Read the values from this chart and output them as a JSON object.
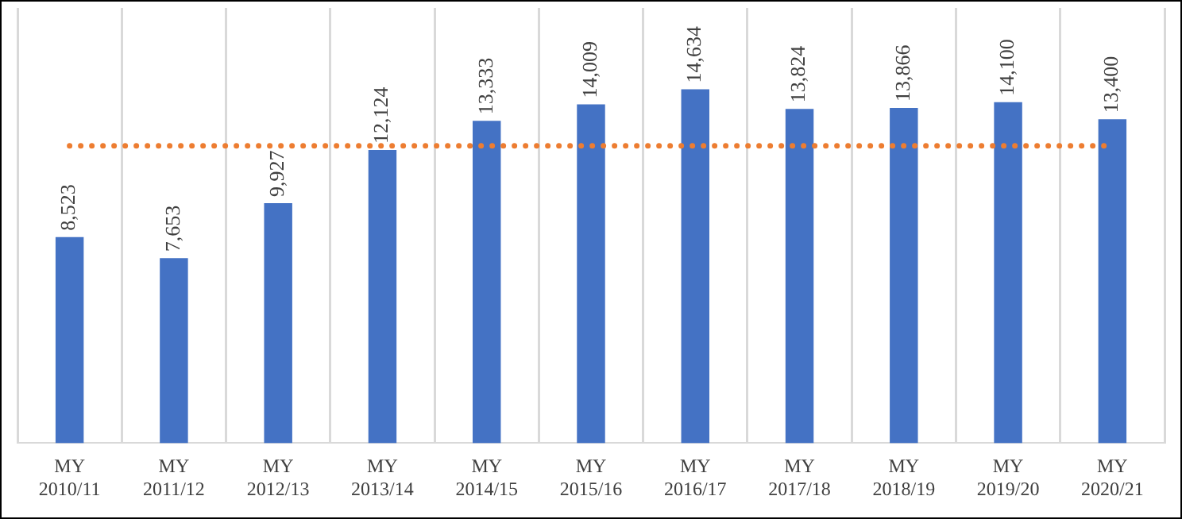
{
  "chart_data": {
    "type": "bar",
    "categories": [
      "MY 2010/11",
      "MY 2011/12",
      "MY 2012/13",
      "MY 2013/14",
      "MY 2014/15",
      "MY 2015/16",
      "MY 2016/17",
      "MY 2017/18",
      "MY 2018/19",
      "MY 2019/20",
      "MY 2020/21"
    ],
    "values": [
      8523,
      7653,
      9927,
      12124,
      13333,
      14009,
      14634,
      13824,
      13866,
      14100,
      13400
    ],
    "value_labels": [
      "8,523",
      "7,653",
      "9,927",
      "12,124",
      "13,333",
      "14,009",
      "14,634",
      "13,824",
      "13,866",
      "14,100",
      "13,400"
    ],
    "color": "#4472c4",
    "grid": "x",
    "tick_labels": "x",
    "ref_lines": [
      {
        "axis": "y",
        "value": 12300,
        "color": "#ed7d31",
        "line_style": "dotted"
      }
    ]
  }
}
